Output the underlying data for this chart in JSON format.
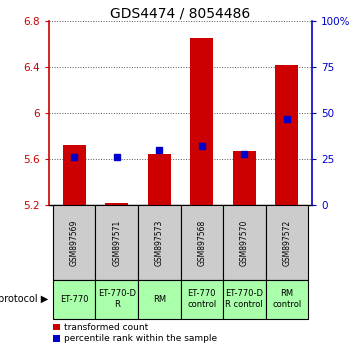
{
  "title": "GDS4474 / 8054486",
  "samples": [
    "GSM897569",
    "GSM897571",
    "GSM897573",
    "GSM897568",
    "GSM897570",
    "GSM897572"
  ],
  "red_top": [
    5.72,
    5.22,
    5.65,
    6.65,
    5.67,
    6.42
  ],
  "red_bottom": [
    5.2,
    5.2,
    5.2,
    5.2,
    5.2,
    5.2
  ],
  "blue_pct": [
    26,
    26,
    30,
    32,
    28,
    47
  ],
  "ylim_left": [
    5.2,
    6.8
  ],
  "ylim_right": [
    0,
    100
  ],
  "yticks_left": [
    5.2,
    5.6,
    6.0,
    6.4,
    6.8
  ],
  "yticks_right": [
    0,
    25,
    50,
    75,
    100
  ],
  "ytick_labels_left": [
    "5.2",
    "5.6",
    "6",
    "6.4",
    "6.8"
  ],
  "ytick_labels_right": [
    "0",
    "25",
    "50",
    "75",
    "100%"
  ],
  "red_color": "#cc0000",
  "blue_color": "#0000cc",
  "bar_width": 0.55,
  "protocols": [
    "ET-770",
    "ET-770-D\nR",
    "RM",
    "ET-770\ncontrol",
    "ET-770-D\nR control",
    "RM\ncontrol"
  ],
  "protocol_bg": "#aaffaa",
  "sample_bg": "#cccccc",
  "dotted_color": "#555555",
  "legend_red": "transformed count",
  "legend_blue": "percentile rank within the sample",
  "title_fontsize": 10,
  "tick_fontsize": 7.5,
  "sample_fontsize": 5.5,
  "proto_fontsize": 6.0,
  "legend_fontsize": 6.5
}
